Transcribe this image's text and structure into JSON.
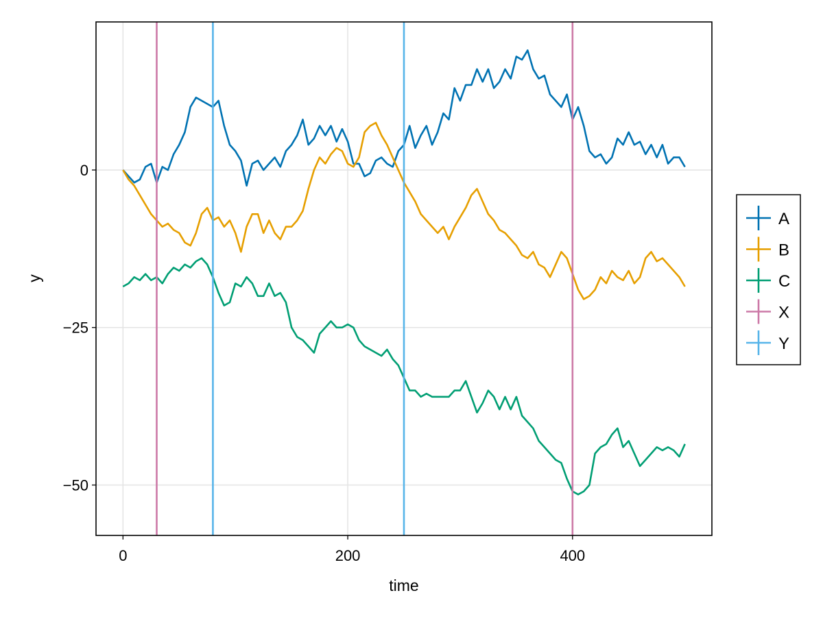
{
  "chart_data": {
    "type": "line",
    "title": "",
    "xlabel": "time",
    "ylabel": "y",
    "xlim": [
      -24,
      524
    ],
    "ylim": [
      -58,
      23.5
    ],
    "xticks": [
      0,
      200,
      400
    ],
    "yticks": [
      0,
      -25,
      -50
    ],
    "xtick_labels": [
      "0",
      "200",
      "400"
    ],
    "ytick_labels": [
      "0",
      "−25",
      "−50"
    ],
    "grid": true,
    "legend_position": "right",
    "series": [
      {
        "name": "A",
        "color": "#0072B2",
        "x": [
          0,
          5,
          10,
          15,
          20,
          25,
          30,
          35,
          40,
          45,
          50,
          55,
          60,
          65,
          70,
          75,
          80,
          85,
          90,
          95,
          100,
          105,
          110,
          115,
          120,
          125,
          130,
          135,
          140,
          145,
          150,
          155,
          160,
          165,
          170,
          175,
          180,
          185,
          190,
          195,
          200,
          205,
          210,
          215,
          220,
          225,
          230,
          235,
          240,
          245,
          250,
          255,
          260,
          265,
          270,
          275,
          280,
          285,
          290,
          295,
          300,
          305,
          310,
          315,
          320,
          325,
          330,
          335,
          340,
          345,
          350,
          355,
          360,
          365,
          370,
          375,
          380,
          385,
          390,
          395,
          400,
          405,
          410,
          415,
          420,
          425,
          430,
          435,
          440,
          445,
          450,
          455,
          460,
          465,
          470,
          475,
          480,
          485,
          490,
          495,
          500
        ],
        "values": [
          0,
          -1,
          -2,
          -1.5,
          0.5,
          1,
          -2,
          0.5,
          0,
          2.5,
          4,
          6,
          10,
          11.5,
          11,
          10.5,
          10,
          11,
          7,
          4,
          3,
          1.5,
          -2.5,
          1,
          1.5,
          0,
          1,
          2,
          0.5,
          3,
          4,
          5.5,
          8,
          4,
          5,
          7,
          5.5,
          7,
          4.5,
          6.5,
          4.5,
          1,
          1,
          -1,
          -0.5,
          1.5,
          2,
          1,
          0.5,
          3,
          4,
          7,
          3.5,
          5.5,
          7,
          4,
          6,
          9,
          8,
          13,
          11,
          13.5,
          13.5,
          16,
          14,
          16,
          13,
          14,
          16,
          14.5,
          18,
          17.5,
          19,
          16,
          14.5,
          15,
          12,
          11,
          10,
          12,
          8,
          10,
          7,
          3,
          2,
          2.5,
          1,
          2,
          5,
          4,
          6,
          4,
          4.5,
          2.5,
          4,
          2,
          4,
          1,
          2,
          2,
          0.5
        ]
      },
      {
        "name": "B",
        "color": "#E69F00",
        "x": [
          0,
          5,
          10,
          15,
          20,
          25,
          30,
          35,
          40,
          45,
          50,
          55,
          60,
          65,
          70,
          75,
          80,
          85,
          90,
          95,
          100,
          105,
          110,
          115,
          120,
          125,
          130,
          135,
          140,
          145,
          150,
          155,
          160,
          165,
          170,
          175,
          180,
          185,
          190,
          195,
          200,
          205,
          210,
          215,
          220,
          225,
          230,
          235,
          240,
          245,
          250,
          255,
          260,
          265,
          270,
          275,
          280,
          285,
          290,
          295,
          300,
          305,
          310,
          315,
          320,
          325,
          330,
          335,
          340,
          345,
          350,
          355,
          360,
          365,
          370,
          375,
          380,
          385,
          390,
          395,
          400,
          405,
          410,
          415,
          420,
          425,
          430,
          435,
          440,
          445,
          450,
          455,
          460,
          465,
          470,
          475,
          480,
          485,
          490,
          495,
          500
        ],
        "values": [
          0,
          -1.5,
          -2.5,
          -4,
          -5.5,
          -7,
          -8,
          -9,
          -8.5,
          -9.5,
          -10,
          -11.5,
          -12,
          -10,
          -7,
          -6,
          -8,
          -7.5,
          -9,
          -8,
          -10,
          -13,
          -9,
          -7,
          -7,
          -10,
          -8,
          -10,
          -11,
          -9,
          -9,
          -8,
          -6.5,
          -3,
          0,
          2,
          1,
          2.5,
          3.5,
          3,
          1,
          0.5,
          2,
          6,
          7,
          7.5,
          5.5,
          4,
          2,
          0,
          -2,
          -3.5,
          -5,
          -7,
          -8,
          -9,
          -10,
          -9,
          -11,
          -9,
          -7.5,
          -6,
          -4,
          -3,
          -5,
          -7,
          -8,
          -9.5,
          -10,
          -11,
          -12,
          -13.5,
          -14,
          -13,
          -15,
          -15.5,
          -17,
          -15,
          -13,
          -14,
          -16.5,
          -19,
          -20.5,
          -20,
          -19,
          -17,
          -18,
          -16,
          -17,
          -17.5,
          -16,
          -18,
          -17,
          -14,
          -13,
          -14.5,
          -14,
          -15,
          -16,
          -17,
          -18.5
        ]
      },
      {
        "name": "C",
        "color": "#009E73",
        "x": [
          0,
          5,
          10,
          15,
          20,
          25,
          30,
          35,
          40,
          45,
          50,
          55,
          60,
          65,
          70,
          75,
          80,
          85,
          90,
          95,
          100,
          105,
          110,
          115,
          120,
          125,
          130,
          135,
          140,
          145,
          150,
          155,
          160,
          165,
          170,
          175,
          180,
          185,
          190,
          195,
          200,
          205,
          210,
          215,
          220,
          225,
          230,
          235,
          240,
          245,
          250,
          255,
          260,
          265,
          270,
          275,
          280,
          285,
          290,
          295,
          300,
          305,
          310,
          315,
          320,
          325,
          330,
          335,
          340,
          345,
          350,
          355,
          360,
          365,
          370,
          375,
          380,
          385,
          390,
          395,
          400,
          405,
          410,
          415,
          420,
          425,
          430,
          435,
          440,
          445,
          450,
          455,
          460,
          465,
          470,
          475,
          480,
          485,
          490,
          495,
          500
        ],
        "values": [
          -18.5,
          -18,
          -17,
          -17.5,
          -16.5,
          -17.5,
          -17,
          -18,
          -16.5,
          -15.5,
          -16,
          -15,
          -15.5,
          -14.5,
          -14,
          -15,
          -17,
          -19.5,
          -21.5,
          -21,
          -18,
          -18.5,
          -17,
          -18,
          -20,
          -20,
          -18,
          -20,
          -19.5,
          -21,
          -25,
          -26.5,
          -27,
          -28,
          -29,
          -26,
          -25,
          -24,
          -25,
          -25,
          -24.5,
          -25,
          -27,
          -28,
          -28.5,
          -29,
          -29.5,
          -28.5,
          -30,
          -31,
          -33,
          -35,
          -35,
          -36,
          -35.5,
          -36,
          -36,
          -36,
          -36,
          -35,
          -35,
          -33.5,
          -36,
          -38.5,
          -37,
          -35,
          -36,
          -38,
          -36,
          -38,
          -36,
          -39,
          -40,
          -41,
          -43,
          -44,
          -45,
          -46,
          -46.5,
          -49,
          -51,
          -51.5,
          -51,
          -50,
          -45,
          -44,
          -43.5,
          -42,
          -41,
          -44,
          -43,
          -45,
          -47,
          -46,
          -45,
          -44,
          -44.5,
          -44,
          -44.5,
          -45.5,
          -43.5
        ]
      },
      {
        "name": "X",
        "color": "#CC79A7",
        "vlines": [
          30,
          400
        ]
      },
      {
        "name": "Y",
        "color": "#56B4E9",
        "vlines": [
          80,
          250
        ]
      }
    ]
  }
}
